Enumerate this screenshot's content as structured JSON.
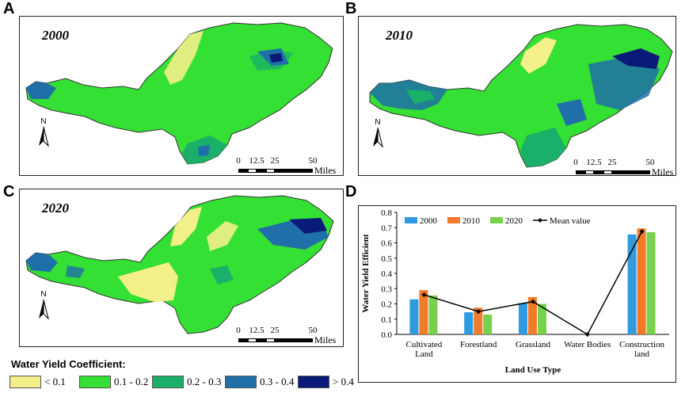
{
  "panels": {
    "a": {
      "letter": "A",
      "year": "2000"
    },
    "b": {
      "letter": "B",
      "year": "2010"
    },
    "c": {
      "letter": "C",
      "year": "2020"
    },
    "d": {
      "letter": "D"
    }
  },
  "north_label": "N",
  "scale": {
    "ticks": [
      "0",
      "12.5",
      "25",
      "50"
    ],
    "units": "Miles"
  },
  "legend": {
    "title": "Water Yield Coefficient:",
    "items": [
      {
        "label": "< 0.1",
        "color": "#f3f08a"
      },
      {
        "label": "0.1 - 0.2",
        "color": "#33e033"
      },
      {
        "label": "0.2 - 0.3",
        "color": "#1ab06a"
      },
      {
        "label": "0.3 - 0.4",
        "color": "#1f6fa8"
      },
      {
        "label": "> 0.4",
        "color": "#0a1a78"
      }
    ]
  },
  "chart_data": {
    "type": "bar",
    "title": "",
    "xlabel": "Land Use Type",
    "ylabel": "Water Yield Efficient",
    "ylim": [
      0,
      0.8
    ],
    "yticks": [
      "0.0",
      "0.1",
      "0.2",
      "0.3",
      "0.4",
      "0.5",
      "0.6",
      "0.7",
      "0.8"
    ],
    "categories": [
      [
        "Cultivated",
        "Land"
      ],
      [
        "Forestland"
      ],
      [
        "Grassland"
      ],
      [
        "Water Bodies"
      ],
      [
        "Construction",
        "land"
      ]
    ],
    "series": [
      {
        "name": "2000",
        "color": "#2e9be0",
        "values": [
          0.23,
          0.145,
          0.205,
          0.0,
          0.655
        ]
      },
      {
        "name": "2010",
        "color": "#f07b2a",
        "values": [
          0.29,
          0.175,
          0.245,
          0.0,
          0.695
        ]
      },
      {
        "name": "2020",
        "color": "#79d04a",
        "values": [
          0.255,
          0.13,
          0.2,
          0.0,
          0.67
        ]
      }
    ],
    "mean": {
      "name": "Mean value",
      "color": "#000000",
      "values": [
        0.26,
        0.15,
        0.215,
        0.0,
        0.675
      ]
    }
  }
}
